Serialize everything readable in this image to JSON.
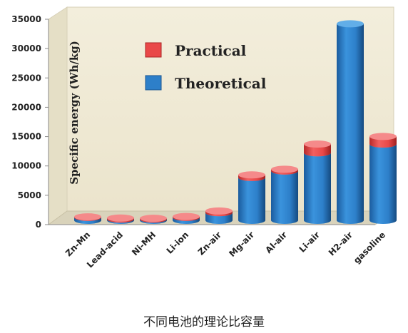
{
  "chart_data": {
    "type": "bar",
    "ylabel": "Specific energy (Wh/kg)",
    "ylim": [
      0,
      35000
    ],
    "yticks": [
      0,
      5000,
      10000,
      15000,
      20000,
      25000,
      30000,
      35000
    ],
    "categories": [
      "Zn-Mn",
      "Lead-acid",
      "Ni-MH",
      "Li-ion",
      "Zn-air",
      "Mg-air",
      "Al-air",
      "Li-air",
      "H2-air",
      "gasoline"
    ],
    "series": [
      {
        "name": "Theoretical",
        "values": [
          500,
          200,
          200,
          500,
          1300,
          7300,
          8400,
          11500,
          33500,
          13000
        ]
      },
      {
        "name": "Practical",
        "values": [
          100,
          200,
          150,
          150,
          300,
          450,
          300,
          1500,
          0,
          1300
        ]
      }
    ],
    "legend_position": "top-left",
    "grid": false,
    "colors": {
      "Theoretical": "#2d7fc9",
      "Practical": "#e94848"
    }
  },
  "caption": "不同电池的理论比容量"
}
